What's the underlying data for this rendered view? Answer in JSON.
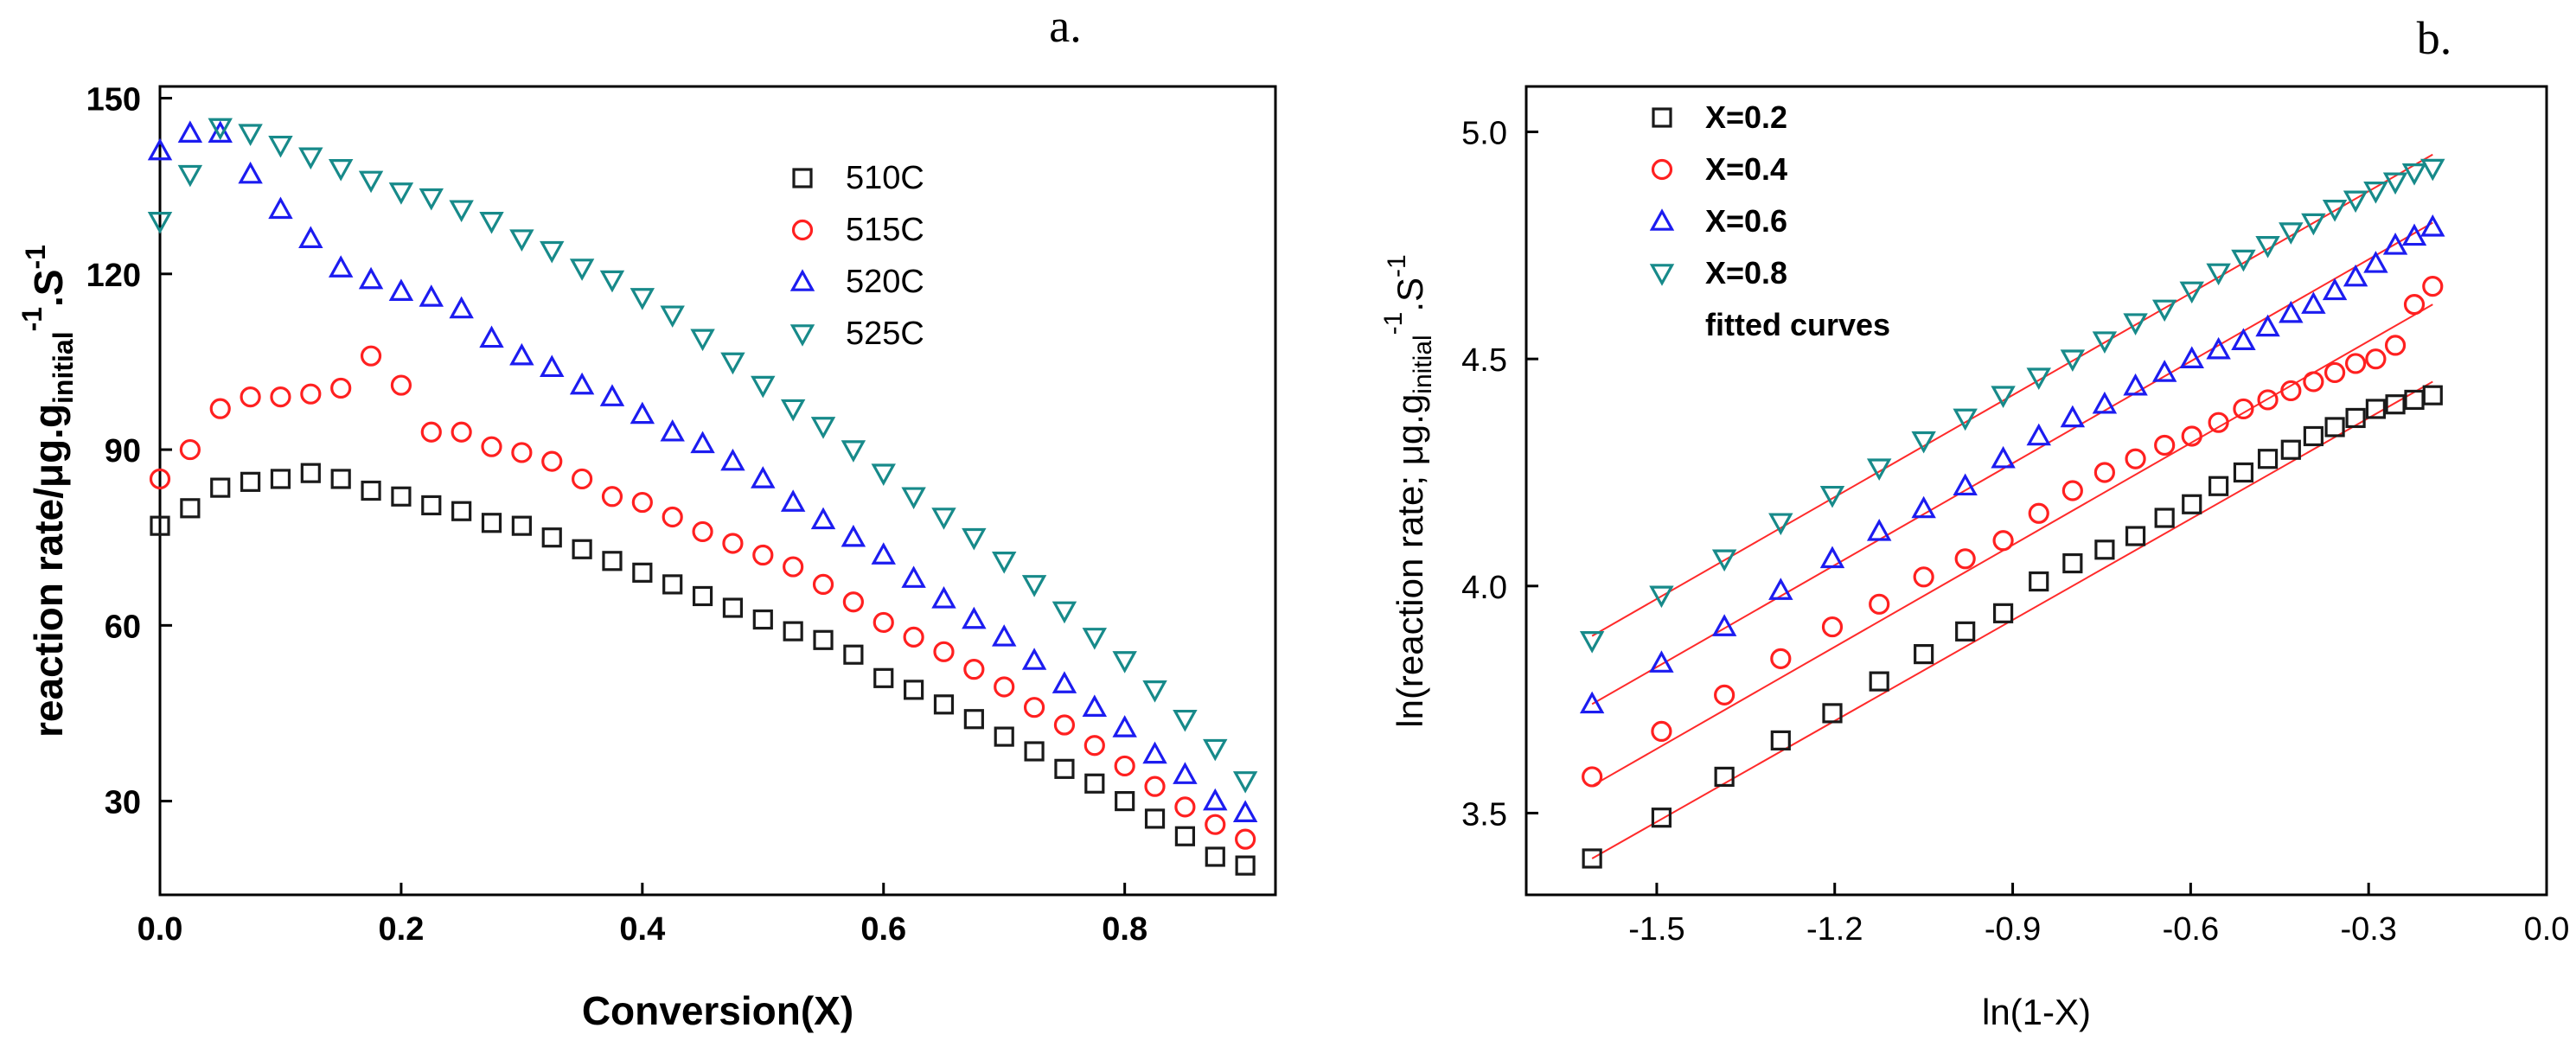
{
  "figure": {
    "panels": [
      "a.",
      "b."
    ]
  },
  "chart_data": [
    {
      "panel": "a.",
      "type": "scatter",
      "title": "",
      "xlabel": "Conversion(X)",
      "ylabel": "reaction rate/μg.g",
      "ylabel_sub": "initial",
      "ylabel_sup1": "-1",
      "ylabel_tail": ".S",
      "ylabel_sup2": "-1",
      "xlim": [
        0,
        0.925
      ],
      "ylim": [
        14,
        152
      ],
      "xticks": [
        0.0,
        0.2,
        0.4,
        0.6,
        0.8
      ],
      "xtick_labels": [
        "0.0",
        "0.2",
        "0.4",
        "0.6",
        "0.8"
      ],
      "yticks": [
        30,
        60,
        90,
        120,
        150
      ],
      "ytick_labels": [
        "30",
        "60",
        "90",
        "120",
        "150"
      ],
      "legend_position": "top-right",
      "series": [
        {
          "name": "510C",
          "marker": "square",
          "color": "#1a1a1a",
          "x": [
            0,
            0.025,
            0.05,
            0.075,
            0.1,
            0.125,
            0.15,
            0.175,
            0.2,
            0.225,
            0.25,
            0.275,
            0.3,
            0.325,
            0.35,
            0.375,
            0.4,
            0.425,
            0.45,
            0.475,
            0.5,
            0.525,
            0.55,
            0.575,
            0.6,
            0.625,
            0.65,
            0.675,
            0.7,
            0.725,
            0.75,
            0.775,
            0.8,
            0.825,
            0.85,
            0.875,
            0.9
          ],
          "y": [
            77,
            80,
            83.5,
            84.5,
            85,
            86,
            85,
            83,
            82,
            80.5,
            79.5,
            77.5,
            77,
            75,
            73,
            71,
            69,
            67,
            65,
            63,
            61,
            59,
            57.5,
            55,
            51,
            49,
            46.5,
            44,
            41,
            38.5,
            35.5,
            33,
            30,
            27,
            24,
            20.5,
            19
          ]
        },
        {
          "name": "515C",
          "marker": "circle",
          "color": "#ff2020",
          "x": [
            0,
            0.025,
            0.05,
            0.075,
            0.1,
            0.125,
            0.15,
            0.175,
            0.2,
            0.225,
            0.25,
            0.275,
            0.3,
            0.325,
            0.35,
            0.375,
            0.4,
            0.425,
            0.45,
            0.475,
            0.5,
            0.525,
            0.55,
            0.575,
            0.6,
            0.625,
            0.65,
            0.675,
            0.7,
            0.725,
            0.75,
            0.775,
            0.8,
            0.825,
            0.85,
            0.875,
            0.9
          ],
          "y": [
            85,
            90,
            97,
            99,
            99,
            99.5,
            100.5,
            106,
            101,
            93,
            93,
            90.5,
            89.5,
            88,
            85,
            82,
            81,
            78.5,
            76,
            74,
            72,
            70,
            67,
            64,
            60.5,
            58,
            55.5,
            52.5,
            49.5,
            46,
            43,
            39.5,
            36,
            32.5,
            29,
            26,
            23.5
          ]
        },
        {
          "name": "520C",
          "marker": "triangle-up",
          "color": "#1c1cf0",
          "x": [
            0,
            0.025,
            0.05,
            0.075,
            0.1,
            0.125,
            0.15,
            0.175,
            0.2,
            0.225,
            0.25,
            0.275,
            0.3,
            0.325,
            0.35,
            0.375,
            0.4,
            0.425,
            0.45,
            0.475,
            0.5,
            0.525,
            0.55,
            0.575,
            0.6,
            0.625,
            0.65,
            0.675,
            0.7,
            0.725,
            0.75,
            0.775,
            0.8,
            0.825,
            0.85,
            0.875,
            0.9
          ],
          "y": [
            141,
            144,
            144,
            137,
            131,
            126,
            121,
            119,
            117,
            116,
            114,
            109,
            106,
            104,
            101,
            99,
            96,
            93,
            91,
            88,
            85,
            81,
            78,
            75,
            72,
            68,
            64.5,
            61,
            58,
            54,
            50,
            46,
            42.5,
            38,
            34.5,
            30,
            28
          ]
        },
        {
          "name": "525C",
          "marker": "triangle-down",
          "color": "#178a8a",
          "x": [
            0,
            0.025,
            0.05,
            0.075,
            0.1,
            0.125,
            0.15,
            0.175,
            0.2,
            0.225,
            0.25,
            0.275,
            0.3,
            0.325,
            0.35,
            0.375,
            0.4,
            0.425,
            0.45,
            0.475,
            0.5,
            0.525,
            0.55,
            0.575,
            0.6,
            0.625,
            0.65,
            0.675,
            0.7,
            0.725,
            0.75,
            0.775,
            0.8,
            0.825,
            0.85,
            0.875,
            0.9
          ],
          "y": [
            129,
            137,
            145,
            144,
            142,
            140,
            138,
            136,
            134,
            133,
            131,
            129,
            126,
            124,
            121,
            119,
            116,
            113,
            109,
            105,
            101,
            97,
            94,
            90,
            86,
            82,
            78.5,
            75,
            71,
            67,
            62.5,
            58,
            54,
            49,
            44,
            39,
            33.5
          ]
        }
      ]
    },
    {
      "panel": "b.",
      "type": "scatter",
      "title": "",
      "xlabel": "ln(1-X)",
      "ylabel": "ln(reaction rate; μg.g",
      "ylabel_sub": "initial",
      "ylabel_sup1": "-1",
      "ylabel_tail": ".S",
      "ylabel_sup2": "-1",
      "xlim": [
        -1.72,
        0.0
      ],
      "ylim": [
        3.32,
        5.1
      ],
      "xticks": [
        -1.5,
        -1.2,
        -0.9,
        -0.6,
        -0.3,
        0.0
      ],
      "xtick_labels": [
        "-1.5",
        "-1.2",
        "-0.9",
        "-0.6",
        "-0.3",
        "0.0"
      ],
      "yticks": [
        3.5,
        4.0,
        4.5,
        5.0
      ],
      "ytick_labels": [
        "3.5",
        "4.0",
        "4.5",
        "5.0"
      ],
      "legend_position": "top-left",
      "fit_label": "fitted curves",
      "fit_color": "#ff2a2a",
      "x": [
        -1.609,
        -1.492,
        -1.386,
        -1.291,
        -1.204,
        -1.125,
        -1.05,
        -0.98,
        -0.916,
        -0.856,
        -0.799,
        -0.745,
        -0.693,
        -0.644,
        -0.598,
        -0.553,
        -0.511,
        -0.47,
        -0.431,
        -0.393,
        -0.357,
        -0.322,
        -0.288,
        -0.255,
        -0.223,
        -0.192
      ],
      "series": [
        {
          "name": "X=0.2",
          "marker": "square",
          "color": "#1a1a1a",
          "y": [
            3.4,
            3.49,
            3.58,
            3.66,
            3.72,
            3.79,
            3.85,
            3.9,
            3.94,
            4.01,
            4.05,
            4.08,
            4.11,
            4.15,
            4.18,
            4.22,
            4.25,
            4.28,
            4.3,
            4.33,
            4.35,
            4.37,
            4.39,
            4.4,
            4.41,
            4.42
          ],
          "fit": [
            [
              -1.609,
              3.4
            ],
            [
              -0.192,
              4.45
            ]
          ]
        },
        {
          "name": "X=0.4",
          "marker": "circle",
          "color": "#ff2020",
          "y": [
            3.58,
            3.68,
            3.76,
            3.84,
            3.91,
            3.96,
            4.02,
            4.06,
            4.1,
            4.16,
            4.21,
            4.25,
            4.28,
            4.31,
            4.33,
            4.36,
            4.39,
            4.41,
            4.43,
            4.45,
            4.47,
            4.49,
            4.5,
            4.53,
            4.62,
            4.66
          ],
          "fit": [
            [
              -1.609,
              3.56
            ],
            [
              -0.192,
              4.62
            ]
          ]
        },
        {
          "name": "X=0.6",
          "marker": "triangle-up",
          "color": "#1c1cf0",
          "y": [
            3.74,
            3.83,
            3.91,
            3.99,
            4.06,
            4.12,
            4.17,
            4.22,
            4.28,
            4.33,
            4.37,
            4.4,
            4.44,
            4.47,
            4.5,
            4.52,
            4.54,
            4.57,
            4.6,
            4.62,
            4.65,
            4.68,
            4.71,
            4.75,
            4.77,
            4.79
          ],
          "fit": [
            [
              -1.609,
              3.74
            ],
            [
              -0.192,
              4.8
            ]
          ]
        },
        {
          "name": "X=0.8",
          "marker": "triangle-down",
          "color": "#178a8a",
          "y": [
            3.88,
            3.98,
            4.06,
            4.14,
            4.2,
            4.26,
            4.32,
            4.37,
            4.42,
            4.46,
            4.5,
            4.54,
            4.58,
            4.61,
            4.65,
            4.69,
            4.72,
            4.75,
            4.78,
            4.8,
            4.83,
            4.85,
            4.87,
            4.89,
            4.91,
            4.92
          ],
          "fit": [
            [
              -1.609,
              3.89
            ],
            [
              -0.192,
              4.95
            ]
          ]
        }
      ]
    }
  ]
}
